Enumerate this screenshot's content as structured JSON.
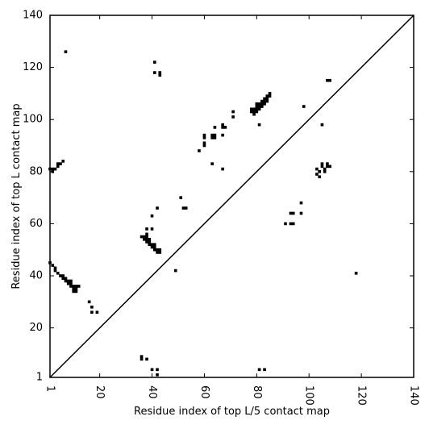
{
  "chart_data": {
    "type": "scatter",
    "title": "",
    "xlabel": "Residue index of top L/5 contact map",
    "ylabel": "Residue index of top L contact map",
    "xlim": [
      1,
      140
    ],
    "ylim": [
      1,
      140
    ],
    "xticks": [
      1,
      20,
      40,
      60,
      80,
      100,
      120,
      140
    ],
    "yticks": [
      1,
      20,
      40,
      60,
      80,
      100,
      120,
      140
    ],
    "xtick_labels": [
      "1",
      "20",
      "40",
      "60",
      "80",
      "100",
      "120",
      "140"
    ],
    "ytick_labels": [
      "1",
      "20",
      "40",
      "60",
      "80",
      "100",
      "120",
      "140"
    ],
    "diagonal": [
      [
        1,
        1
      ],
      [
        140,
        140
      ]
    ],
    "grid": false,
    "colors": {
      "points": "#000000",
      "axes": "#000000",
      "background": "#ffffff"
    },
    "points": [
      [
        1,
        81
      ],
      [
        2,
        80
      ],
      [
        2,
        81
      ],
      [
        3,
        81
      ],
      [
        4,
        82
      ],
      [
        4,
        83
      ],
      [
        5,
        83
      ],
      [
        6,
        84
      ],
      [
        7,
        126
      ],
      [
        1,
        45
      ],
      [
        2,
        44
      ],
      [
        3,
        43
      ],
      [
        3,
        42
      ],
      [
        4,
        41
      ],
      [
        5,
        40
      ],
      [
        6,
        40
      ],
      [
        6,
        39
      ],
      [
        7,
        39
      ],
      [
        7,
        38
      ],
      [
        8,
        38
      ],
      [
        8,
        37
      ],
      [
        9,
        37
      ],
      [
        9,
        36
      ],
      [
        10,
        36
      ],
      [
        10,
        35
      ],
      [
        11,
        35
      ],
      [
        11,
        34
      ],
      [
        10,
        34
      ],
      [
        11,
        36
      ],
      [
        9,
        38
      ],
      [
        12,
        36
      ],
      [
        16,
        30
      ],
      [
        17,
        28
      ],
      [
        17,
        26
      ],
      [
        19,
        26
      ],
      [
        36,
        55
      ],
      [
        37,
        55
      ],
      [
        37,
        54
      ],
      [
        38,
        54
      ],
      [
        38,
        55
      ],
      [
        38,
        53
      ],
      [
        39,
        54
      ],
      [
        39,
        53
      ],
      [
        39,
        52
      ],
      [
        40,
        52
      ],
      [
        40,
        51
      ],
      [
        41,
        52
      ],
      [
        41,
        51
      ],
      [
        41,
        50
      ],
      [
        42,
        50
      ],
      [
        42,
        49
      ],
      [
        43,
        49
      ],
      [
        43,
        50
      ],
      [
        38,
        56
      ],
      [
        38,
        58
      ],
      [
        40,
        58
      ],
      [
        40,
        63
      ],
      [
        42,
        66
      ],
      [
        41,
        122
      ],
      [
        41,
        118
      ],
      [
        43,
        117
      ],
      [
        43,
        118
      ],
      [
        49,
        42
      ],
      [
        51,
        70
      ],
      [
        52,
        66
      ],
      [
        53,
        66
      ],
      [
        58,
        88
      ],
      [
        60,
        91
      ],
      [
        60,
        90
      ],
      [
        60,
        93
      ],
      [
        60,
        94
      ],
      [
        63,
        83
      ],
      [
        63,
        93
      ],
      [
        63,
        94
      ],
      [
        64,
        93
      ],
      [
        64,
        94
      ],
      [
        64,
        97
      ],
      [
        67,
        97
      ],
      [
        67,
        98
      ],
      [
        68,
        97
      ],
      [
        67,
        94
      ],
      [
        67,
        81
      ],
      [
        71,
        101
      ],
      [
        71,
        103
      ],
      [
        78,
        103
      ],
      [
        78,
        104
      ],
      [
        79,
        104
      ],
      [
        79,
        103
      ],
      [
        79,
        102
      ],
      [
        80,
        103
      ],
      [
        80,
        104
      ],
      [
        80,
        105
      ],
      [
        80,
        106
      ],
      [
        81,
        104
      ],
      [
        81,
        105
      ],
      [
        81,
        106
      ],
      [
        82,
        106
      ],
      [
        82,
        107
      ],
      [
        82,
        105
      ],
      [
        83,
        107
      ],
      [
        83,
        108
      ],
      [
        84,
        108
      ],
      [
        84,
        109
      ],
      [
        85,
        109
      ],
      [
        85,
        110
      ],
      [
        84,
        107
      ],
      [
        83,
        106
      ],
      [
        81,
        98
      ],
      [
        91,
        60
      ],
      [
        93,
        60
      ],
      [
        93,
        64
      ],
      [
        94,
        60
      ],
      [
        94,
        64
      ],
      [
        97,
        64
      ],
      [
        97,
        68
      ],
      [
        98,
        105
      ],
      [
        103,
        81
      ],
      [
        103,
        79
      ],
      [
        104,
        80
      ],
      [
        104,
        78
      ],
      [
        105,
        82
      ],
      [
        105,
        83
      ],
      [
        106,
        80
      ],
      [
        106,
        81
      ],
      [
        107,
        82
      ],
      [
        107,
        83
      ],
      [
        108,
        82
      ],
      [
        105,
        98
      ],
      [
        107,
        115
      ],
      [
        108,
        115
      ],
      [
        118,
        41
      ],
      [
        36,
        9
      ],
      [
        36,
        8
      ],
      [
        38,
        8
      ],
      [
        40,
        4
      ],
      [
        42,
        4
      ],
      [
        42,
        2
      ],
      [
        81,
        4
      ],
      [
        83,
        4
      ]
    ]
  }
}
